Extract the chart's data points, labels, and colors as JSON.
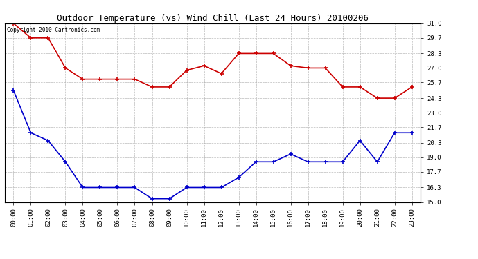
{
  "title": "Outdoor Temperature (vs) Wind Chill (Last 24 Hours) 20100206",
  "copyright_text": "Copyright 2010 Cartronics.com",
  "x_labels": [
    "00:00",
    "01:00",
    "02:00",
    "03:00",
    "04:00",
    "05:00",
    "06:00",
    "07:00",
    "08:00",
    "09:00",
    "10:00",
    "11:00",
    "12:00",
    "13:00",
    "14:00",
    "15:00",
    "16:00",
    "17:00",
    "18:00",
    "19:00",
    "20:00",
    "21:00",
    "22:00",
    "23:00"
  ],
  "temp_data": [
    31.0,
    29.7,
    29.7,
    27.0,
    26.0,
    26.0,
    26.0,
    26.0,
    25.3,
    25.3,
    26.8,
    27.2,
    26.5,
    28.3,
    28.3,
    28.3,
    27.2,
    27.0,
    27.0,
    25.3,
    25.3,
    24.3,
    24.3,
    25.3
  ],
  "windchill_data": [
    25.0,
    21.2,
    20.5,
    18.6,
    16.3,
    16.3,
    16.3,
    16.3,
    15.3,
    15.3,
    16.3,
    16.3,
    16.3,
    17.2,
    18.6,
    18.6,
    19.3,
    18.6,
    18.6,
    18.6,
    20.5,
    18.6,
    21.2,
    21.2
  ],
  "temp_color": "#cc0000",
  "windchill_color": "#0000cc",
  "background_color": "#ffffff",
  "grid_color": "#aaaaaa",
  "ylim_min": 15.0,
  "ylim_max": 31.0,
  "yticks": [
    15.0,
    16.3,
    17.7,
    19.0,
    20.3,
    21.7,
    23.0,
    24.3,
    25.7,
    27.0,
    28.3,
    29.7,
    31.0
  ]
}
